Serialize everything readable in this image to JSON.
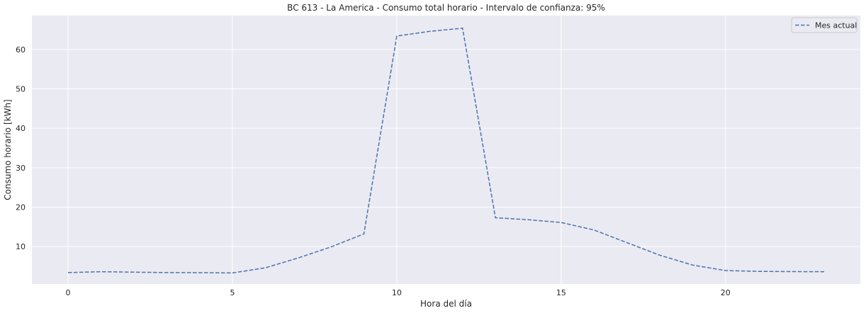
{
  "chart_data": {
    "type": "line",
    "title": "BC 613 - La America - Consumo total horario - Intervalo de confianza: 95%",
    "xlabel": "Hora del día",
    "ylabel": "Consumo horario [kWh]",
    "xlim": [
      -1.1,
      24.1
    ],
    "ylim": [
      0.5,
      68.6
    ],
    "xticks": [
      0,
      5,
      10,
      15,
      20
    ],
    "yticks": [
      10,
      20,
      30,
      40,
      50,
      60
    ],
    "grid": true,
    "legend_position": "top-right",
    "series": [
      {
        "name": "Mes actual",
        "color": "#4c72b0",
        "line_style": "dashed",
        "x": [
          0,
          1,
          2,
          3,
          4,
          5,
          6,
          7,
          8,
          9,
          10,
          11,
          12,
          13,
          14,
          15,
          16,
          17,
          18,
          19,
          20,
          21,
          22,
          23
        ],
        "y": [
          3.4,
          3.6,
          3.5,
          3.4,
          3.35,
          3.3,
          4.6,
          7.1,
          9.9,
          13.2,
          63.4,
          64.6,
          65.4,
          17.3,
          16.8,
          16.1,
          14.2,
          11.0,
          7.8,
          5.3,
          3.9,
          3.7,
          3.65,
          3.6
        ]
      }
    ]
  }
}
